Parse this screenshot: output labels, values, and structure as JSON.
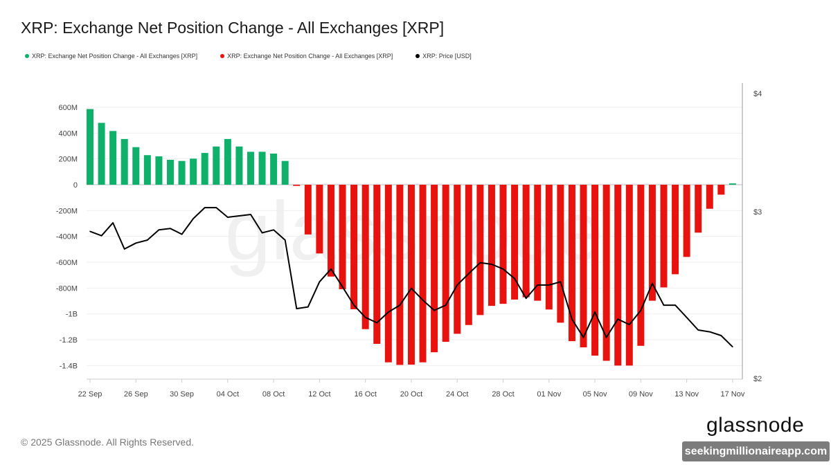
{
  "title": "XRP: Exchange Net Position Change - All Exchanges [XRP]",
  "legend": [
    {
      "label": "XRP: Exchange Net Position Change - All Exchanges [XRP]",
      "color": "#0fb06a"
    },
    {
      "label": "XRP: Exchange Net Position Change - All Exchanges [XRP]",
      "color": "#e8120f"
    },
    {
      "label": "XRP: Price [USD]",
      "color": "#000000"
    }
  ],
  "footer": {
    "copyright": "© 2025 Glassnode. All Rights Reserved.",
    "logo": "glassnode",
    "watermark": "seekingmillionaireapp.com",
    "chart_watermark": "glassnode"
  },
  "chart_data": {
    "type": "bar",
    "title": "XRP: Exchange Net Position Change - All Exchanges [XRP]",
    "x_start": "2025-09-22",
    "x_end": "2025-11-17",
    "x_tick_labels": [
      "22 Sep",
      "26 Sep",
      "30 Sep",
      "04 Oct",
      "08 Oct",
      "12 Oct",
      "16 Oct",
      "20 Oct",
      "24 Oct",
      "28 Oct",
      "01 Nov",
      "05 Nov",
      "09 Nov",
      "13 Nov",
      "17 Nov"
    ],
    "y_left": {
      "tick_labels": [
        "600M",
        "400M",
        "200M",
        "0",
        "-200M",
        "-400M",
        "-600M",
        "-800M",
        "-1B",
        "-1.2B",
        "-1.4B"
      ],
      "ticks": [
        600,
        400,
        200,
        0,
        -200,
        -400,
        -600,
        -800,
        -1000,
        -1200,
        -1400
      ],
      "unit": "M XRP",
      "range": [
        -1500,
        650
      ]
    },
    "y_right": {
      "tick_labels": [
        "$4",
        "$3",
        "$2"
      ],
      "ticks": [
        4,
        3,
        2
      ],
      "scale": "log",
      "range": [
        2,
        4
      ]
    },
    "grid": true,
    "legend_position": "top-left",
    "colors": {
      "positive": "#0fb06a",
      "negative": "#e8120f",
      "price": "#000000"
    },
    "net_position_change": [
      586,
      479,
      416,
      354,
      291,
      229,
      220,
      193,
      184,
      202,
      246,
      296,
      354,
      296,
      255,
      255,
      241,
      184,
      -9,
      -385,
      -532,
      -711,
      -809,
      -964,
      -1118,
      -1232,
      -1375,
      -1395,
      -1393,
      -1375,
      -1297,
      -1216,
      -1154,
      -1086,
      -1009,
      -938,
      -922,
      -889,
      -871,
      -898,
      -966,
      -1068,
      -1211,
      -1259,
      -1323,
      -1363,
      -1400,
      -1400,
      -1247,
      -898,
      -795,
      -693,
      -559,
      -371,
      -186,
      -77,
      10
    ],
    "price_usd": [
      2.86,
      2.83,
      2.92,
      2.74,
      2.78,
      2.8,
      2.87,
      2.88,
      2.84,
      2.95,
      3.03,
      3.03,
      2.96,
      2.97,
      2.98,
      2.85,
      2.87,
      2.8,
      2.37,
      2.38,
      2.53,
      2.61,
      2.5,
      2.39,
      2.32,
      2.29,
      2.35,
      2.39,
      2.49,
      2.42,
      2.36,
      2.39,
      2.51,
      2.58,
      2.65,
      2.64,
      2.61,
      2.55,
      2.43,
      2.51,
      2.51,
      2.53,
      2.31,
      2.21,
      2.35,
      2.21,
      2.31,
      2.28,
      2.36,
      2.52,
      2.39,
      2.39,
      2.32,
      2.25,
      2.24,
      2.22,
      2.16
    ]
  }
}
